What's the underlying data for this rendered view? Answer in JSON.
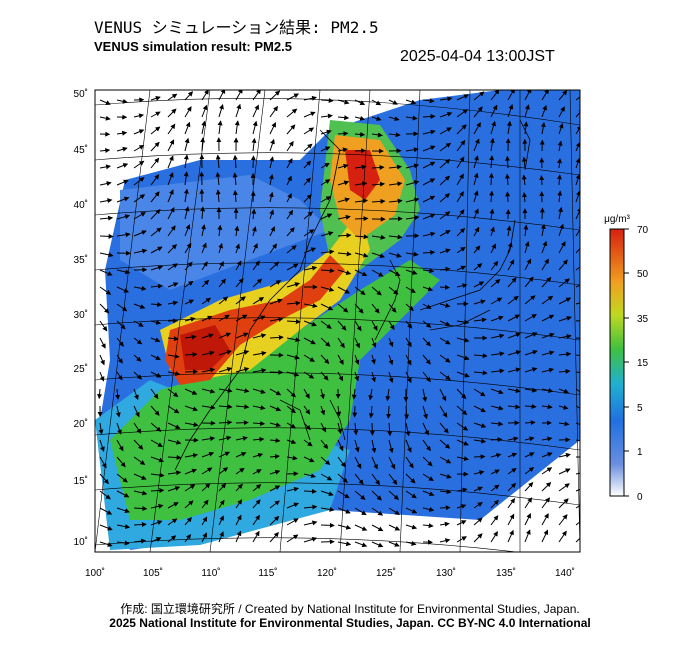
{
  "header": {
    "title_jp": "VENUS シミュレーション結果: PM2.5",
    "title_en": "VENUS simulation result: PM2.5",
    "timestamp": "2025-04-04 13:00JST"
  },
  "map": {
    "lat_labels": [
      "50˚",
      "45˚",
      "40˚",
      "35˚",
      "30˚",
      "25˚",
      "20˚",
      "15˚",
      "10˚"
    ],
    "lon_labels": [
      "100˚",
      "105˚",
      "110˚",
      "115˚",
      "120˚",
      "125˚",
      "130˚",
      "135˚",
      "140˚"
    ],
    "wind_arrows_icon": "wind-vector-arrow-icon"
  },
  "colorbar": {
    "unit": "μg/m³",
    "ticks": [
      "70",
      "50",
      "35",
      "15",
      "5",
      "1",
      "0"
    ],
    "colors": [
      "#d62010",
      "#f08020",
      "#f0d020",
      "#40c040",
      "#20a0e0",
      "#2060d0",
      "#ffffff"
    ]
  },
  "footer": {
    "credit": "作成: 国立環境研究所 / Created by National Institute for Environmental Studies, Japan.",
    "license": "2025 National Institute for Environmental Studies, Japan. CC BY-NC 4.0 International"
  }
}
